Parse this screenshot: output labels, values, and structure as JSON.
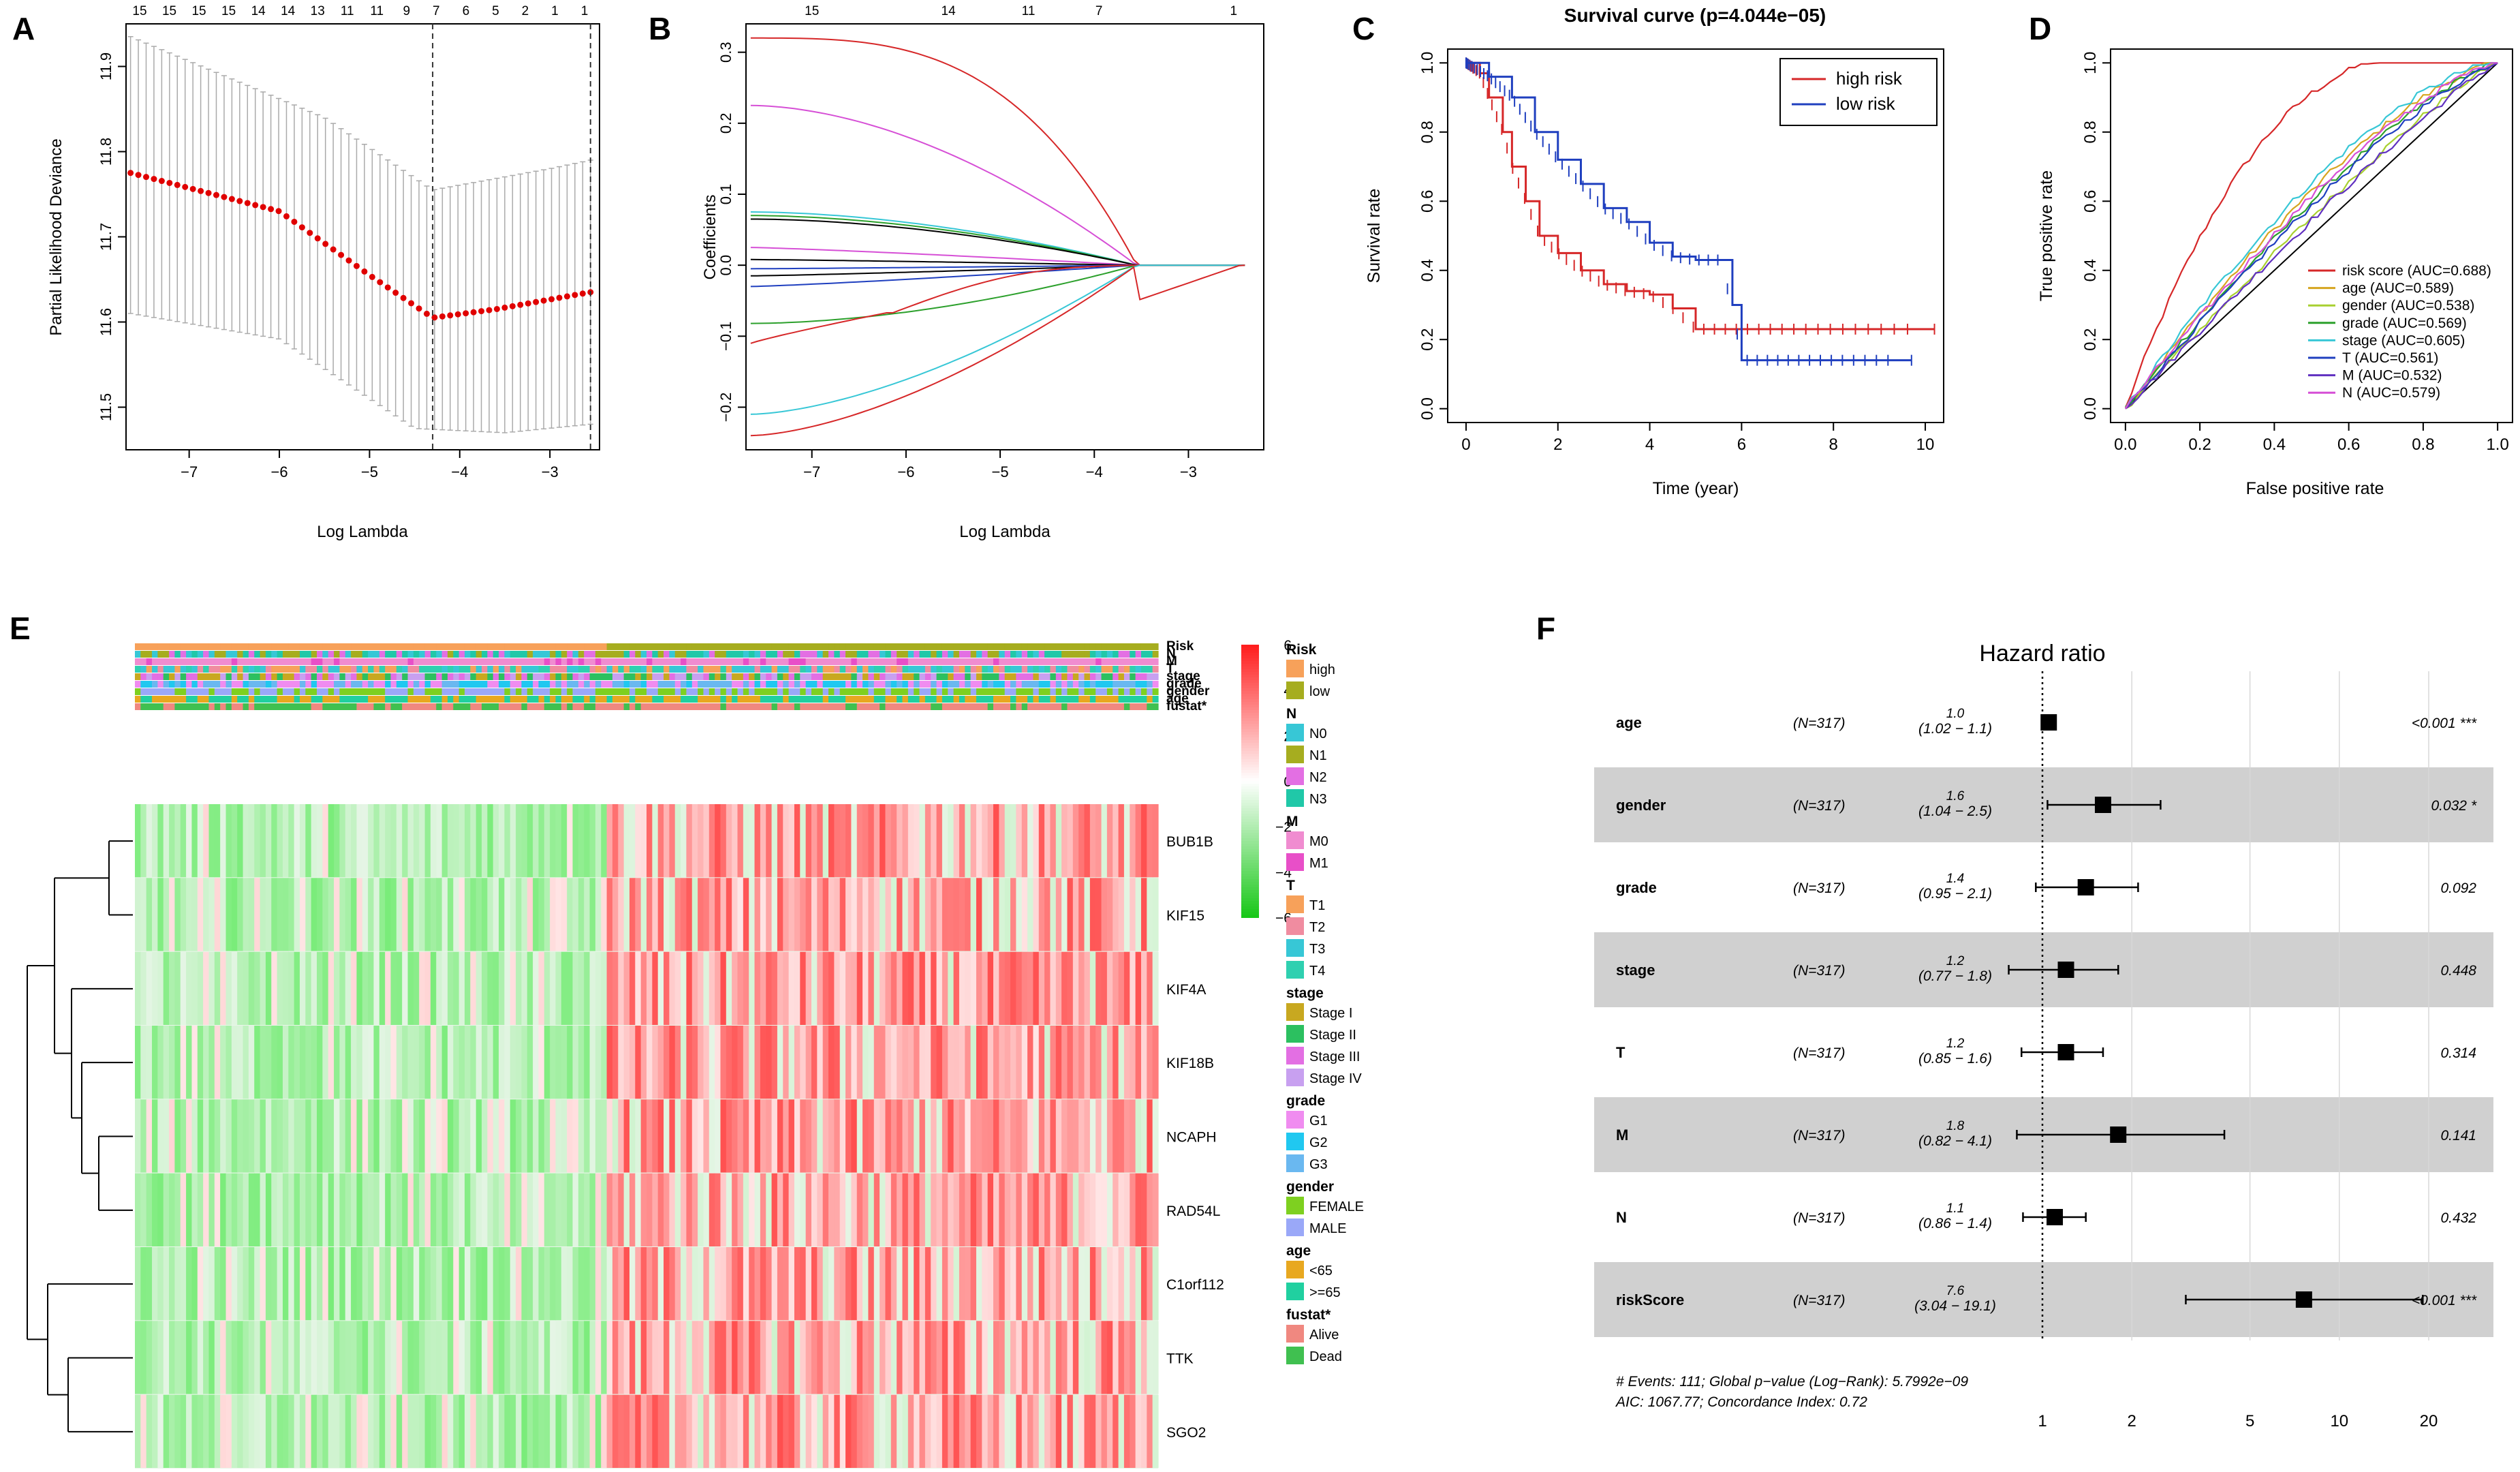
{
  "colors": {
    "red": "#d62728",
    "green": "#2ca02c",
    "blue": "#1f3fbf",
    "cyan": "#37c7d6",
    "magenta": "#d64fd6",
    "black": "#000000",
    "orange": "#f7a15a",
    "olive": "#a6ad1f",
    "gray": "#d0d0d0"
  },
  "chart_data": [
    {
      "panel": "A",
      "type": "line",
      "xlabel": "Log Lambda",
      "ylabel": "Partial Likelihood Deviance",
      "xlim": [
        -7.7,
        -2.45
      ],
      "ylim": [
        11.45,
        11.95
      ],
      "xticks": [
        -7,
        -6,
        -5,
        -4,
        -3
      ],
      "yticks": [
        11.5,
        11.6,
        11.7,
        11.8,
        11.9
      ],
      "top_axis": [
        "15",
        "15",
        "15",
        "15",
        "14",
        "14",
        "13",
        "11",
        "11",
        "9",
        "7",
        "6",
        "5",
        "2",
        "1",
        "1"
      ],
      "vlines": [
        -4.3,
        -2.55
      ],
      "mean_endpoints": [
        [
          -7.65,
          11.775
        ],
        [
          -6.0,
          11.73
        ],
        [
          -5.0,
          11.655
        ],
        [
          -4.3,
          11.605
        ],
        [
          -3.6,
          11.615
        ],
        [
          -2.55,
          11.635
        ]
      ],
      "upper_endpoints": [
        [
          -7.65,
          11.935
        ],
        [
          -5.5,
          11.84
        ],
        [
          -4.3,
          11.755
        ],
        [
          -3.0,
          11.78
        ],
        [
          -2.55,
          11.79
        ]
      ],
      "lower_endpoints": [
        [
          -7.65,
          11.61
        ],
        [
          -6.0,
          11.58
        ],
        [
          -4.5,
          11.475
        ],
        [
          -3.5,
          11.47
        ],
        [
          -2.55,
          11.48
        ]
      ]
    },
    {
      "panel": "B",
      "type": "line",
      "xlabel": "Log Lambda",
      "ylabel": "Coefficients",
      "xlim": [
        -7.7,
        -2.2
      ],
      "ylim": [
        -0.26,
        0.34
      ],
      "xticks": [
        -7,
        -6,
        -5,
        -4,
        -3
      ],
      "yticks": [
        -0.2,
        -0.1,
        0.0,
        0.1,
        0.2,
        0.3
      ],
      "top_axis": [
        "15",
        "14",
        "11",
        "7",
        "1"
      ],
      "series": [
        {
          "color": "red",
          "y0": 0.32,
          "shape": "slow"
        },
        {
          "color": "magenta",
          "y0": 0.225,
          "shape": "mid"
        },
        {
          "color": "cyan",
          "y0": 0.075,
          "shape": "mid"
        },
        {
          "color": "green",
          "y0": 0.07,
          "shape": "mid"
        },
        {
          "color": "black",
          "y0": 0.065,
          "shape": "mid"
        },
        {
          "color": "magenta",
          "y0": 0.025,
          "shape": "fast"
        },
        {
          "color": "black",
          "y0": 0.008,
          "shape": "fast"
        },
        {
          "color": "blue",
          "y0": -0.005,
          "shape": "fast"
        },
        {
          "color": "black",
          "y0": -0.015,
          "shape": "fast"
        },
        {
          "color": "blue",
          "y0": -0.03,
          "shape": "fast"
        },
        {
          "color": "green",
          "y0": -0.082,
          "shape": "mid"
        },
        {
          "color": "red",
          "y0": -0.11,
          "shape": "rise"
        },
        {
          "color": "cyan",
          "y0": -0.21,
          "shape": "slowneg"
        },
        {
          "color": "red",
          "y0": -0.24,
          "shape": "slowneg"
        }
      ]
    },
    {
      "panel": "C",
      "type": "line",
      "title": "Survival curve (p=4.044e−05)",
      "xlabel": "Time (year)",
      "ylabel": "Survival rate",
      "xlim": [
        -0.4,
        10.4
      ],
      "ylim": [
        -0.04,
        1.04
      ],
      "xticks": [
        0,
        2,
        4,
        6,
        8,
        10
      ],
      "yticks": [
        0.0,
        0.2,
        0.4,
        0.6,
        0.8,
        1.0
      ],
      "legend": [
        "high risk",
        "low risk"
      ],
      "series": [
        {
          "name": "high risk",
          "color": "red",
          "points": [
            [
              0,
              1.0
            ],
            [
              0.3,
              0.97
            ],
            [
              0.5,
              0.9
            ],
            [
              0.8,
              0.8
            ],
            [
              1.0,
              0.7
            ],
            [
              1.3,
              0.6
            ],
            [
              1.6,
              0.5
            ],
            [
              2.0,
              0.45
            ],
            [
              2.5,
              0.4
            ],
            [
              3.0,
              0.36
            ],
            [
              3.5,
              0.34
            ],
            [
              4.0,
              0.33
            ],
            [
              4.5,
              0.29
            ],
            [
              5.0,
              0.23
            ],
            [
              10.2,
              0.23
            ]
          ]
        },
        {
          "name": "low risk",
          "color": "blue",
          "points": [
            [
              0,
              1.0
            ],
            [
              0.5,
              0.96
            ],
            [
              1.0,
              0.9
            ],
            [
              1.5,
              0.8
            ],
            [
              2.0,
              0.72
            ],
            [
              2.5,
              0.65
            ],
            [
              3.0,
              0.58
            ],
            [
              3.5,
              0.54
            ],
            [
              4.0,
              0.48
            ],
            [
              4.5,
              0.44
            ],
            [
              5.0,
              0.43
            ],
            [
              5.5,
              0.43
            ],
            [
              5.8,
              0.3
            ],
            [
              6.0,
              0.14
            ],
            [
              9.7,
              0.14
            ]
          ]
        }
      ]
    },
    {
      "panel": "D",
      "type": "line",
      "xlabel": "False positive rate",
      "ylabel": "True positive rate",
      "xlim": [
        -0.04,
        1.04
      ],
      "ylim": [
        -0.04,
        1.04
      ],
      "xticks": [
        0.0,
        0.2,
        0.4,
        0.6,
        0.8,
        1.0
      ],
      "yticks": [
        0.0,
        0.2,
        0.4,
        0.6,
        0.8,
        1.0
      ],
      "legend": [
        "risk score (AUC=0.688)",
        "age (AUC=0.589)",
        "gender (AUC=0.538)",
        "grade (AUC=0.569)",
        "stage (AUC=0.605)",
        "T (AUC=0.561)",
        "M (AUC=0.532)",
        "N (AUC=0.579)"
      ],
      "legend_colors": [
        "red",
        "#d6a520",
        "#a8d030",
        "#2ca02c",
        "cyan",
        "blue",
        "#6030c0",
        "magenta"
      ],
      "auc": [
        0.688,
        0.589,
        0.538,
        0.569,
        0.605,
        0.561,
        0.532,
        0.579
      ]
    },
    {
      "panel": "E",
      "type": "heatmap",
      "genes": [
        "BUB1B",
        "KIF15",
        "KIF4A",
        "KIF18B",
        "NCAPH",
        "RAD54L",
        "C1orf112",
        "TTK",
        "SGO2"
      ],
      "annotation_rows": [
        "Risk",
        "N",
        "M",
        "T",
        "stage",
        "grade",
        "gender",
        "age",
        "fustat*"
      ],
      "scale_ticks": [
        "6",
        "4",
        "2",
        "0",
        "−2",
        "−4",
        "−6"
      ],
      "legend_groups": [
        {
          "title": "Risk",
          "items": [
            "high",
            "low"
          ],
          "colors": [
            "#f7a15a",
            "#a6ad1f"
          ]
        },
        {
          "title": "N",
          "items": [
            "N0",
            "N1",
            "N2",
            "N3"
          ],
          "colors": [
            "#37c7d6",
            "#a6ad1f",
            "#e36fe3",
            "#20c8a8"
          ]
        },
        {
          "title": "M",
          "items": [
            "M0",
            "M1"
          ],
          "colors": [
            "#f08cd0",
            "#e84fc8"
          ]
        },
        {
          "title": "T",
          "items": [
            "T1",
            "T2",
            "T3",
            "T4"
          ],
          "colors": [
            "#f7a15a",
            "#f08ca0",
            "#37c7d6",
            "#2fd0b0"
          ]
        },
        {
          "title": "stage",
          "items": [
            "Stage I",
            "Stage II",
            "Stage III",
            "Stage IV"
          ],
          "colors": [
            "#c8a820",
            "#2cc060",
            "#e36fe3",
            "#c8a0f0"
          ]
        },
        {
          "title": "grade",
          "items": [
            "G1",
            "G2",
            "G3"
          ],
          "colors": [
            "#f08cf0",
            "#20c8f0",
            "#6ab8f0"
          ]
        },
        {
          "title": "gender",
          "items": [
            "FEMALE",
            "MALE"
          ],
          "colors": [
            "#7ed020",
            "#9aa8f8"
          ]
        },
        {
          "title": "age",
          "items": [
            "<65",
            ">=65"
          ],
          "colors": [
            "#e8a820",
            "#20d0a0"
          ]
        },
        {
          "title": "fustat*",
          "items": [
            "Alive",
            "Dead"
          ],
          "colors": [
            "#f08880",
            "#40c050"
          ]
        }
      ]
    },
    {
      "panel": "F",
      "type": "forest",
      "title": "Hazard ratio",
      "rows": [
        {
          "var": "age",
          "n": "(N=317)",
          "hr": "1.0",
          "ci": "(1.02 −  1.1)",
          "p": "<0.001 ***",
          "est": 1.05,
          "lo": 1.02,
          "hi": 1.1
        },
        {
          "var": "gender",
          "n": "(N=317)",
          "hr": "1.6",
          "ci": "(1.04 −  2.5)",
          "p": "0.032 *",
          "est": 1.6,
          "lo": 1.04,
          "hi": 2.5
        },
        {
          "var": "grade",
          "n": "(N=317)",
          "hr": "1.4",
          "ci": "(0.95 −  2.1)",
          "p": "0.092",
          "est": 1.4,
          "lo": 0.95,
          "hi": 2.1
        },
        {
          "var": "stage",
          "n": "(N=317)",
          "hr": "1.2",
          "ci": "(0.77 −  1.8)",
          "p": "0.448",
          "est": 1.2,
          "lo": 0.77,
          "hi": 1.8
        },
        {
          "var": "T",
          "n": "(N=317)",
          "hr": "1.2",
          "ci": "(0.85 −  1.6)",
          "p": "0.314",
          "est": 1.2,
          "lo": 0.85,
          "hi": 1.6
        },
        {
          "var": "M",
          "n": "(N=317)",
          "hr": "1.8",
          "ci": "(0.82 −  4.1)",
          "p": "0.141",
          "est": 1.8,
          "lo": 0.82,
          "hi": 4.1
        },
        {
          "var": "N",
          "n": "(N=317)",
          "hr": "1.1",
          "ci": "(0.86 −  1.4)",
          "p": "0.432",
          "est": 1.1,
          "lo": 0.86,
          "hi": 1.4
        },
        {
          "var": "riskScore",
          "n": "(N=317)",
          "hr": "7.6",
          "ci": "(3.04 − 19.1)",
          "p": "<0.001 ***",
          "est": 7.6,
          "lo": 3.04,
          "hi": 19.1
        }
      ],
      "xticks": [
        "1",
        "2",
        "5",
        "10",
        "20"
      ],
      "footer": [
        "# Events: 111; Global p−value (Log−Rank): 5.7992e−09",
        "AIC: 1067.77; Concordance Index: 0.72"
      ]
    }
  ],
  "panel_labels": [
    "A",
    "B",
    "C",
    "D",
    "E",
    "F"
  ]
}
